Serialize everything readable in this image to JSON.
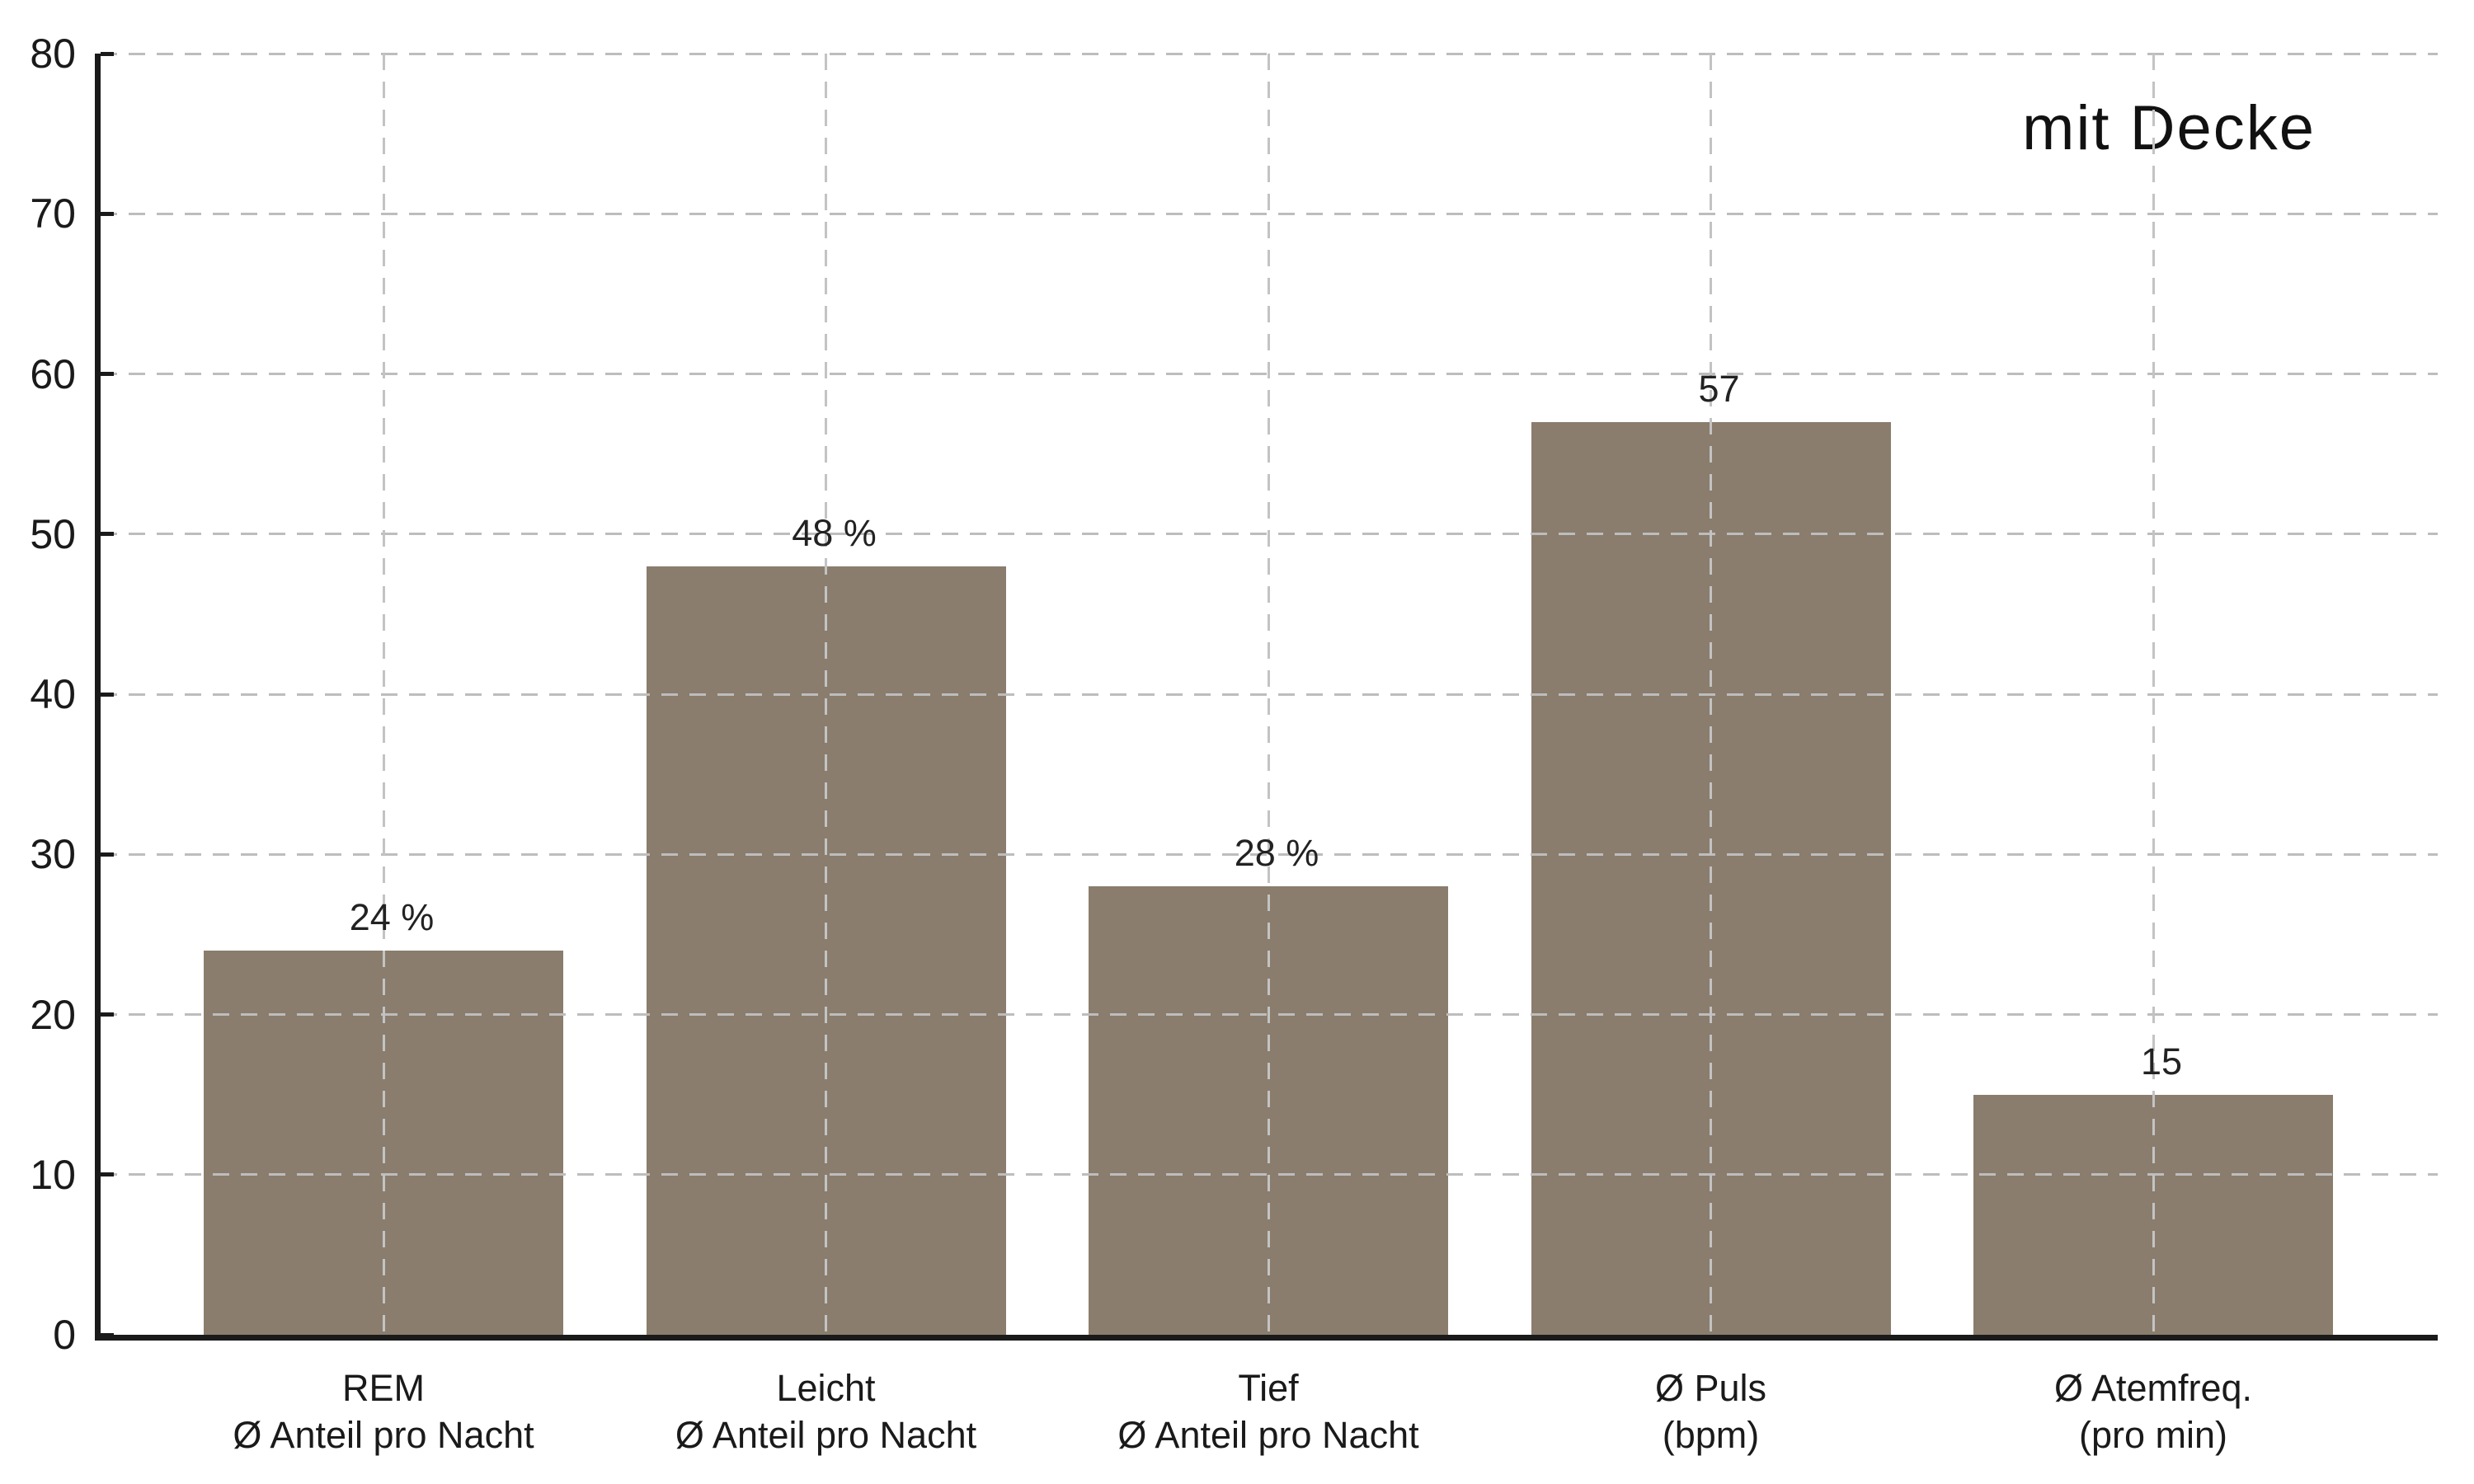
{
  "chart_data": {
    "type": "bar",
    "annotation": "mit Decke",
    "categories": [
      [
        "REM",
        "Ø Anteil pro Nacht"
      ],
      [
        "Leicht",
        "Ø Anteil pro Nacht"
      ],
      [
        "Tief",
        "Ø Anteil pro Nacht"
      ],
      [
        "Ø Puls",
        "(bpm)"
      ],
      [
        "Ø Atemfreq.",
        "(pro min)"
      ]
    ],
    "values": [
      24,
      48,
      28,
      57,
      15
    ],
    "bar_labels": [
      "24 %",
      "48 %",
      "28 %",
      "57",
      "15"
    ],
    "ylabel": "",
    "xlabel": "",
    "ylim": [
      0,
      80
    ],
    "yticks": [
      0,
      10,
      20,
      30,
      40,
      50,
      60,
      70,
      80
    ],
    "grid": {
      "style": "dashed",
      "horizontal": true,
      "vertical": true,
      "over_bars": true
    },
    "legend": "none",
    "colors": {
      "bar": "#8a7d6d",
      "grid": "#bdbdbd",
      "axis": "#1a1a1a",
      "text": "#1a1a1a",
      "background": "#ffffff"
    }
  }
}
